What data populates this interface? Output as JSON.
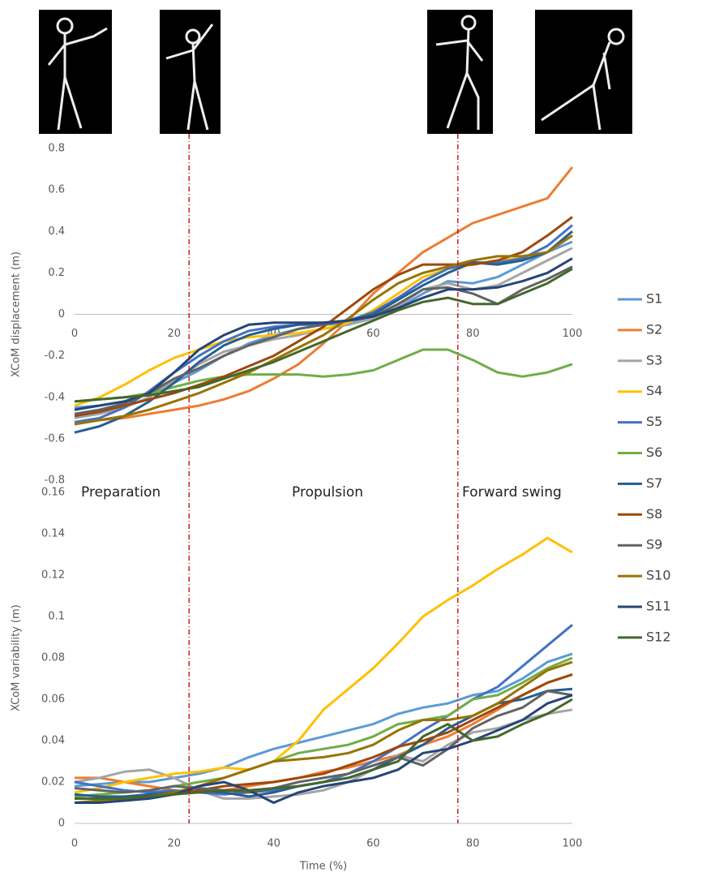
{
  "chart_data": [
    {
      "type": "line",
      "ylabel": "XCoM displacement (m)",
      "xlim": [
        0,
        100
      ],
      "ylim": [
        -0.8,
        0.8
      ],
      "xticks": [
        0,
        20,
        40,
        60,
        80,
        100
      ],
      "yticks": [
        0.8,
        0.6,
        0.4,
        0.2,
        0,
        -0.2,
        -0.4,
        -0.6,
        -0.8
      ],
      "grid": false,
      "vlines": [
        23,
        77
      ],
      "annotations": [
        "Preparation",
        "Propulsion",
        "Forward swing"
      ],
      "x": [
        0,
        5,
        10,
        15,
        20,
        25,
        30,
        35,
        40,
        45,
        50,
        55,
        60,
        65,
        70,
        75,
        80,
        85,
        90,
        95,
        100
      ],
      "series": [
        {
          "name": "S1",
          "color": "#5b9bd5",
          "values": [
            -0.45,
            -0.44,
            -0.42,
            -0.38,
            -0.33,
            -0.27,
            -0.2,
            -0.14,
            -0.1,
            -0.07,
            -0.05,
            -0.04,
            -0.02,
            0.03,
            0.1,
            0.16,
            0.15,
            0.18,
            0.24,
            0.3,
            0.35
          ]
        },
        {
          "name": "S2",
          "color": "#ed7d31",
          "values": [
            -0.52,
            -0.51,
            -0.5,
            -0.48,
            -0.46,
            -0.44,
            -0.41,
            -0.37,
            -0.31,
            -0.24,
            -0.14,
            -0.03,
            0.1,
            0.2,
            0.3,
            0.37,
            0.44,
            0.48,
            0.52,
            0.56,
            0.71
          ]
        },
        {
          "name": "S3",
          "color": "#a5a5a5",
          "values": [
            -0.5,
            -0.48,
            -0.45,
            -0.4,
            -0.32,
            -0.24,
            -0.18,
            -0.15,
            -0.12,
            -0.1,
            -0.07,
            -0.05,
            -0.02,
            0.04,
            0.12,
            0.15,
            0.12,
            0.14,
            0.2,
            0.26,
            0.32
          ]
        },
        {
          "name": "S4",
          "color": "#ffc000",
          "values": [
            -0.44,
            -0.4,
            -0.34,
            -0.27,
            -0.21,
            -0.17,
            -0.13,
            -0.11,
            -0.1,
            -0.09,
            -0.07,
            -0.04,
            0.02,
            0.1,
            0.18,
            0.22,
            0.24,
            0.26,
            0.27,
            0.3,
            0.38
          ]
        },
        {
          "name": "S5",
          "color": "#4472c4",
          "values": [
            -0.52,
            -0.5,
            -0.45,
            -0.37,
            -0.28,
            -0.2,
            -0.13,
            -0.08,
            -0.06,
            -0.05,
            -0.05,
            -0.03,
            0.01,
            0.08,
            0.16,
            0.22,
            0.25,
            0.25,
            0.27,
            0.33,
            0.43
          ]
        },
        {
          "name": "S6",
          "color": "#70ad47",
          "values": [
            -0.42,
            -0.41,
            -0.4,
            -0.38,
            -0.35,
            -0.32,
            -0.3,
            -0.29,
            -0.29,
            -0.29,
            -0.3,
            -0.29,
            -0.27,
            -0.22,
            -0.17,
            -0.17,
            -0.22,
            -0.28,
            -0.3,
            -0.28,
            -0.24
          ]
        },
        {
          "name": "S7",
          "color": "#255e91",
          "values": [
            -0.57,
            -0.54,
            -0.49,
            -0.42,
            -0.33,
            -0.23,
            -0.15,
            -0.1,
            -0.07,
            -0.05,
            -0.04,
            -0.03,
            0.0,
            0.07,
            0.14,
            0.2,
            0.25,
            0.24,
            0.26,
            0.3,
            0.4
          ]
        },
        {
          "name": "S8",
          "color": "#9e480e",
          "values": [
            -0.49,
            -0.47,
            -0.44,
            -0.41,
            -0.38,
            -0.34,
            -0.3,
            -0.25,
            -0.2,
            -0.13,
            -0.06,
            0.03,
            0.12,
            0.19,
            0.24,
            0.24,
            0.24,
            0.26,
            0.3,
            0.38,
            0.47
          ]
        },
        {
          "name": "S9",
          "color": "#636363",
          "values": [
            -0.48,
            -0.46,
            -0.43,
            -0.38,
            -0.31,
            -0.26,
            -0.2,
            -0.15,
            -0.11,
            -0.07,
            -0.05,
            -0.03,
            -0.01,
            0.05,
            0.12,
            0.13,
            0.1,
            0.05,
            0.12,
            0.17,
            0.23
          ]
        },
        {
          "name": "S10",
          "color": "#997300",
          "values": [
            -0.53,
            -0.51,
            -0.49,
            -0.46,
            -0.42,
            -0.38,
            -0.33,
            -0.28,
            -0.22,
            -0.16,
            -0.1,
            -0.02,
            0.07,
            0.15,
            0.2,
            0.23,
            0.26,
            0.28,
            0.28,
            0.3,
            0.38
          ]
        },
        {
          "name": "S11",
          "color": "#264478",
          "values": [
            -0.46,
            -0.44,
            -0.42,
            -0.38,
            -0.28,
            -0.17,
            -0.1,
            -0.05,
            -0.04,
            -0.04,
            -0.04,
            -0.03,
            -0.01,
            0.03,
            0.08,
            0.12,
            0.12,
            0.13,
            0.16,
            0.2,
            0.27
          ]
        },
        {
          "name": "S12",
          "color": "#43682b",
          "values": [
            -0.42,
            -0.41,
            -0.4,
            -0.39,
            -0.37,
            -0.35,
            -0.31,
            -0.27,
            -0.23,
            -0.18,
            -0.13,
            -0.08,
            -0.03,
            0.02,
            0.06,
            0.08,
            0.05,
            0.05,
            0.1,
            0.15,
            0.22
          ]
        }
      ]
    },
    {
      "type": "line",
      "ylabel": "XCoM variability (m)",
      "xlabel": "Time (%)",
      "xlim": [
        0,
        100
      ],
      "ylim": [
        0,
        0.16
      ],
      "xticks": [
        0,
        20,
        40,
        60,
        80,
        100
      ],
      "yticks": [
        0.16,
        0.14,
        0.12,
        0.1,
        0.08,
        0.06,
        0.04,
        0.02,
        0
      ],
      "grid": false,
      "x": [
        0,
        5,
        10,
        15,
        20,
        25,
        30,
        35,
        40,
        45,
        50,
        55,
        60,
        65,
        70,
        75,
        80,
        85,
        90,
        95,
        100
      ],
      "series": [
        {
          "color": "#5b9bd5",
          "values": [
            0.018,
            0.019,
            0.02,
            0.02,
            0.022,
            0.024,
            0.027,
            0.032,
            0.036,
            0.039,
            0.042,
            0.045,
            0.048,
            0.053,
            0.056,
            0.058,
            0.062,
            0.064,
            0.07,
            0.078,
            0.082
          ]
        },
        {
          "color": "#ed7d31",
          "values": [
            0.022,
            0.022,
            0.02,
            0.018,
            0.016,
            0.015,
            0.016,
            0.018,
            0.02,
            0.022,
            0.025,
            0.027,
            0.03,
            0.033,
            0.038,
            0.042,
            0.048,
            0.055,
            0.062,
            0.068,
            0.072
          ]
        },
        {
          "color": "#a5a5a5",
          "values": [
            0.02,
            0.022,
            0.025,
            0.026,
            0.022,
            0.016,
            0.012,
            0.012,
            0.013,
            0.014,
            0.016,
            0.02,
            0.026,
            0.033,
            0.03,
            0.038,
            0.044,
            0.046,
            0.05,
            0.053,
            0.055
          ]
        },
        {
          "color": "#ffc000",
          "values": [
            0.015,
            0.017,
            0.02,
            0.022,
            0.024,
            0.025,
            0.027,
            0.026,
            0.03,
            0.04,
            0.055,
            0.065,
            0.075,
            0.087,
            0.1,
            0.108,
            0.115,
            0.123,
            0.13,
            0.138,
            0.131
          ]
        },
        {
          "color": "#4472c4",
          "values": [
            0.02,
            0.018,
            0.016,
            0.015,
            0.016,
            0.015,
            0.014,
            0.015,
            0.016,
            0.018,
            0.02,
            0.024,
            0.03,
            0.037,
            0.045,
            0.052,
            0.06,
            0.066,
            0.076,
            0.086,
            0.096
          ]
        },
        {
          "color": "#70ad47",
          "values": [
            0.013,
            0.014,
            0.015,
            0.016,
            0.018,
            0.02,
            0.022,
            0.026,
            0.03,
            0.034,
            0.036,
            0.038,
            0.042,
            0.048,
            0.05,
            0.052,
            0.06,
            0.062,
            0.068,
            0.075,
            0.08
          ]
        },
        {
          "color": "#255e91",
          "values": [
            0.014,
            0.013,
            0.013,
            0.014,
            0.015,
            0.016,
            0.015,
            0.013,
            0.015,
            0.018,
            0.02,
            0.022,
            0.026,
            0.032,
            0.038,
            0.046,
            0.052,
            0.058,
            0.06,
            0.064,
            0.065
          ]
        },
        {
          "color": "#9e480e",
          "values": [
            0.012,
            0.012,
            0.012,
            0.013,
            0.014,
            0.016,
            0.018,
            0.019,
            0.02,
            0.022,
            0.024,
            0.028,
            0.032,
            0.037,
            0.04,
            0.044,
            0.05,
            0.056,
            0.062,
            0.068,
            0.072
          ]
        },
        {
          "color": "#636363",
          "values": [
            0.017,
            0.016,
            0.015,
            0.016,
            0.018,
            0.017,
            0.016,
            0.015,
            0.017,
            0.02,
            0.022,
            0.024,
            0.028,
            0.032,
            0.028,
            0.036,
            0.046,
            0.052,
            0.056,
            0.064,
            0.062
          ]
        },
        {
          "color": "#997300",
          "values": [
            0.01,
            0.011,
            0.012,
            0.013,
            0.015,
            0.018,
            0.022,
            0.026,
            0.03,
            0.031,
            0.032,
            0.034,
            0.038,
            0.045,
            0.05,
            0.05,
            0.052,
            0.058,
            0.066,
            0.074,
            0.078
          ]
        },
        {
          "color": "#264478",
          "values": [
            0.01,
            0.01,
            0.011,
            0.012,
            0.014,
            0.018,
            0.02,
            0.016,
            0.01,
            0.015,
            0.018,
            0.02,
            0.022,
            0.026,
            0.034,
            0.036,
            0.04,
            0.045,
            0.05,
            0.058,
            0.062
          ]
        },
        {
          "color": "#43682b",
          "values": [
            0.012,
            0.012,
            0.012,
            0.013,
            0.014,
            0.015,
            0.016,
            0.016,
            0.017,
            0.018,
            0.02,
            0.022,
            0.026,
            0.03,
            0.042,
            0.048,
            0.04,
            0.042,
            0.048,
            0.053,
            0.06
          ]
        }
      ]
    }
  ]
}
